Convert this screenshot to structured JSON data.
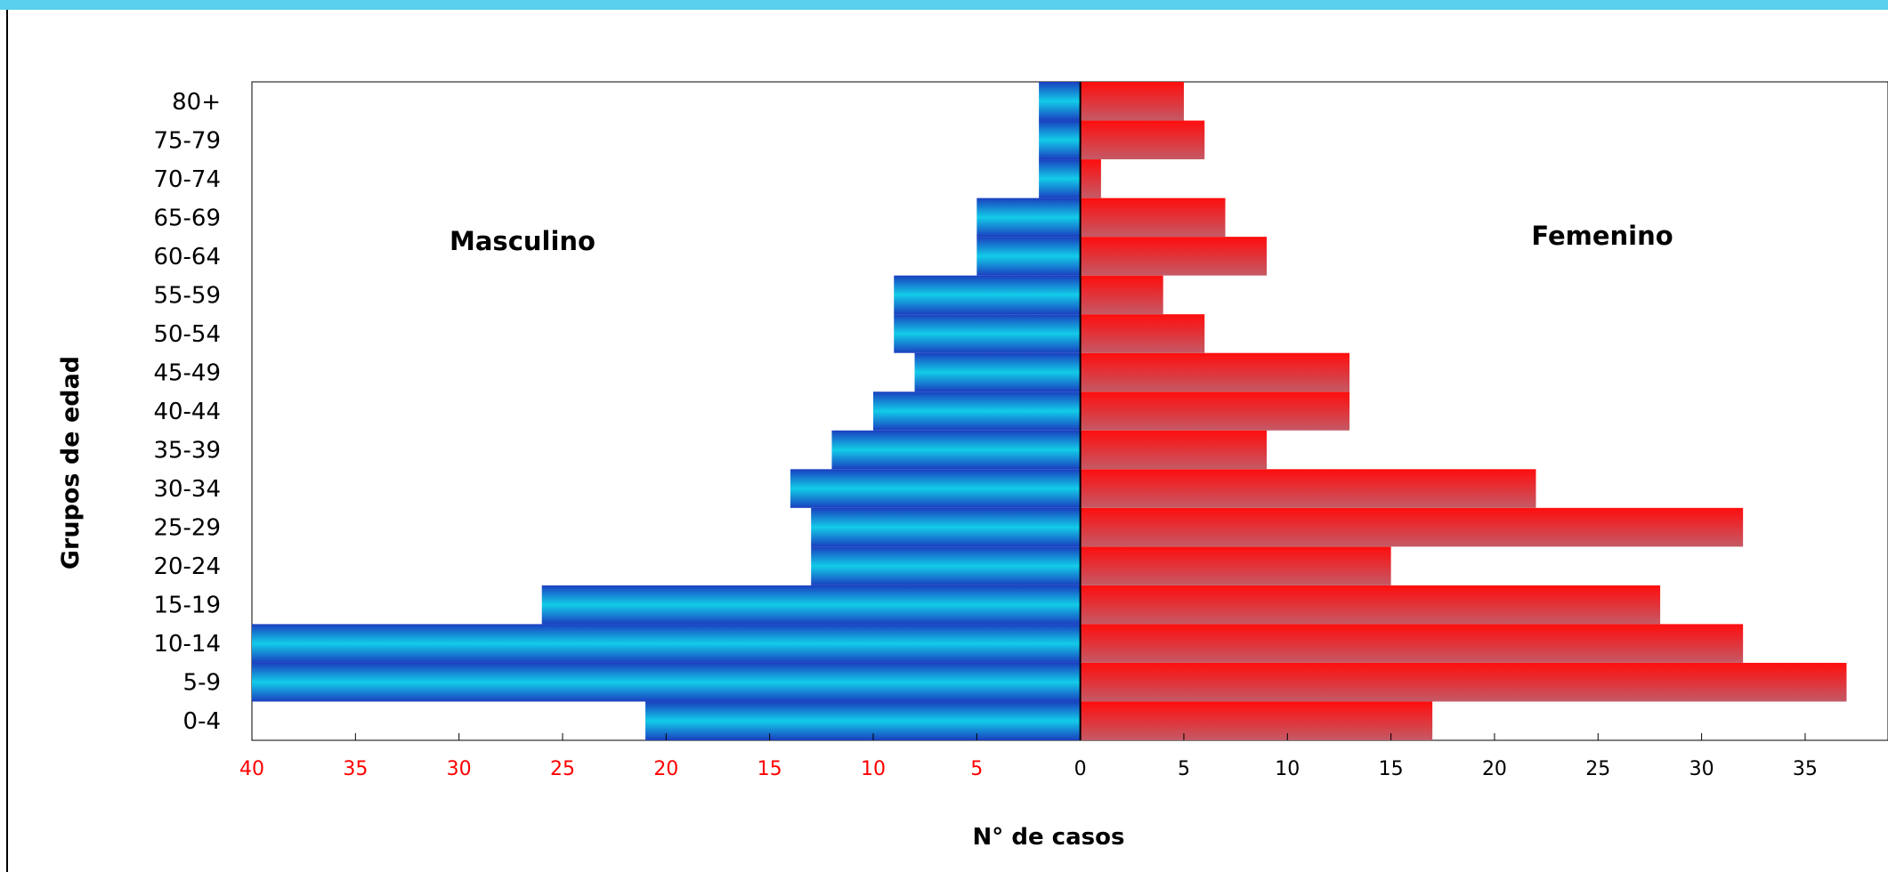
{
  "chart_data": {
    "type": "bar",
    "orientation": "horizontal",
    "categories": [
      "0-4",
      "5-9",
      "10-14",
      "15-19",
      "20-24",
      "25-29",
      "30-34",
      "35-39",
      "40-44",
      "45-49",
      "50-54",
      "55-59",
      "60-64",
      "65-69",
      "70-74",
      "75-79",
      "80+"
    ],
    "series": [
      {
        "name": "Masculino",
        "values": [
          21,
          40,
          40,
          26,
          13,
          13,
          14,
          12,
          10,
          8,
          9,
          9,
          5,
          5,
          2,
          2,
          2
        ]
      },
      {
        "name": "Femenino",
        "values": [
          17,
          37,
          32,
          28,
          15,
          32,
          22,
          9,
          13,
          13,
          6,
          4,
          9,
          7,
          1,
          6,
          5
        ]
      }
    ],
    "xlabel": "N° de casos",
    "ylabel": "Grupos de edad",
    "x_ticks_left": [
      "40",
      "35",
      "30",
      "25",
      "20",
      "15",
      "10",
      "5"
    ],
    "x_ticks_right": [
      "0",
      "5",
      "10",
      "15",
      "20",
      "25",
      "30",
      "35"
    ],
    "xlim": [
      -40,
      39
    ],
    "legend_labels": {
      "left": "Masculino",
      "right": "Femenino"
    },
    "grid": false
  },
  "colors": {
    "male_dark": "#1a3fc0",
    "male_light": "#12cce8",
    "female_top": "#ff0d0d",
    "female_bottom": "#c45a66",
    "left_tick_text": "#ff0000",
    "right_tick_text": "#000000",
    "topbar": "#5ad0ee"
  }
}
